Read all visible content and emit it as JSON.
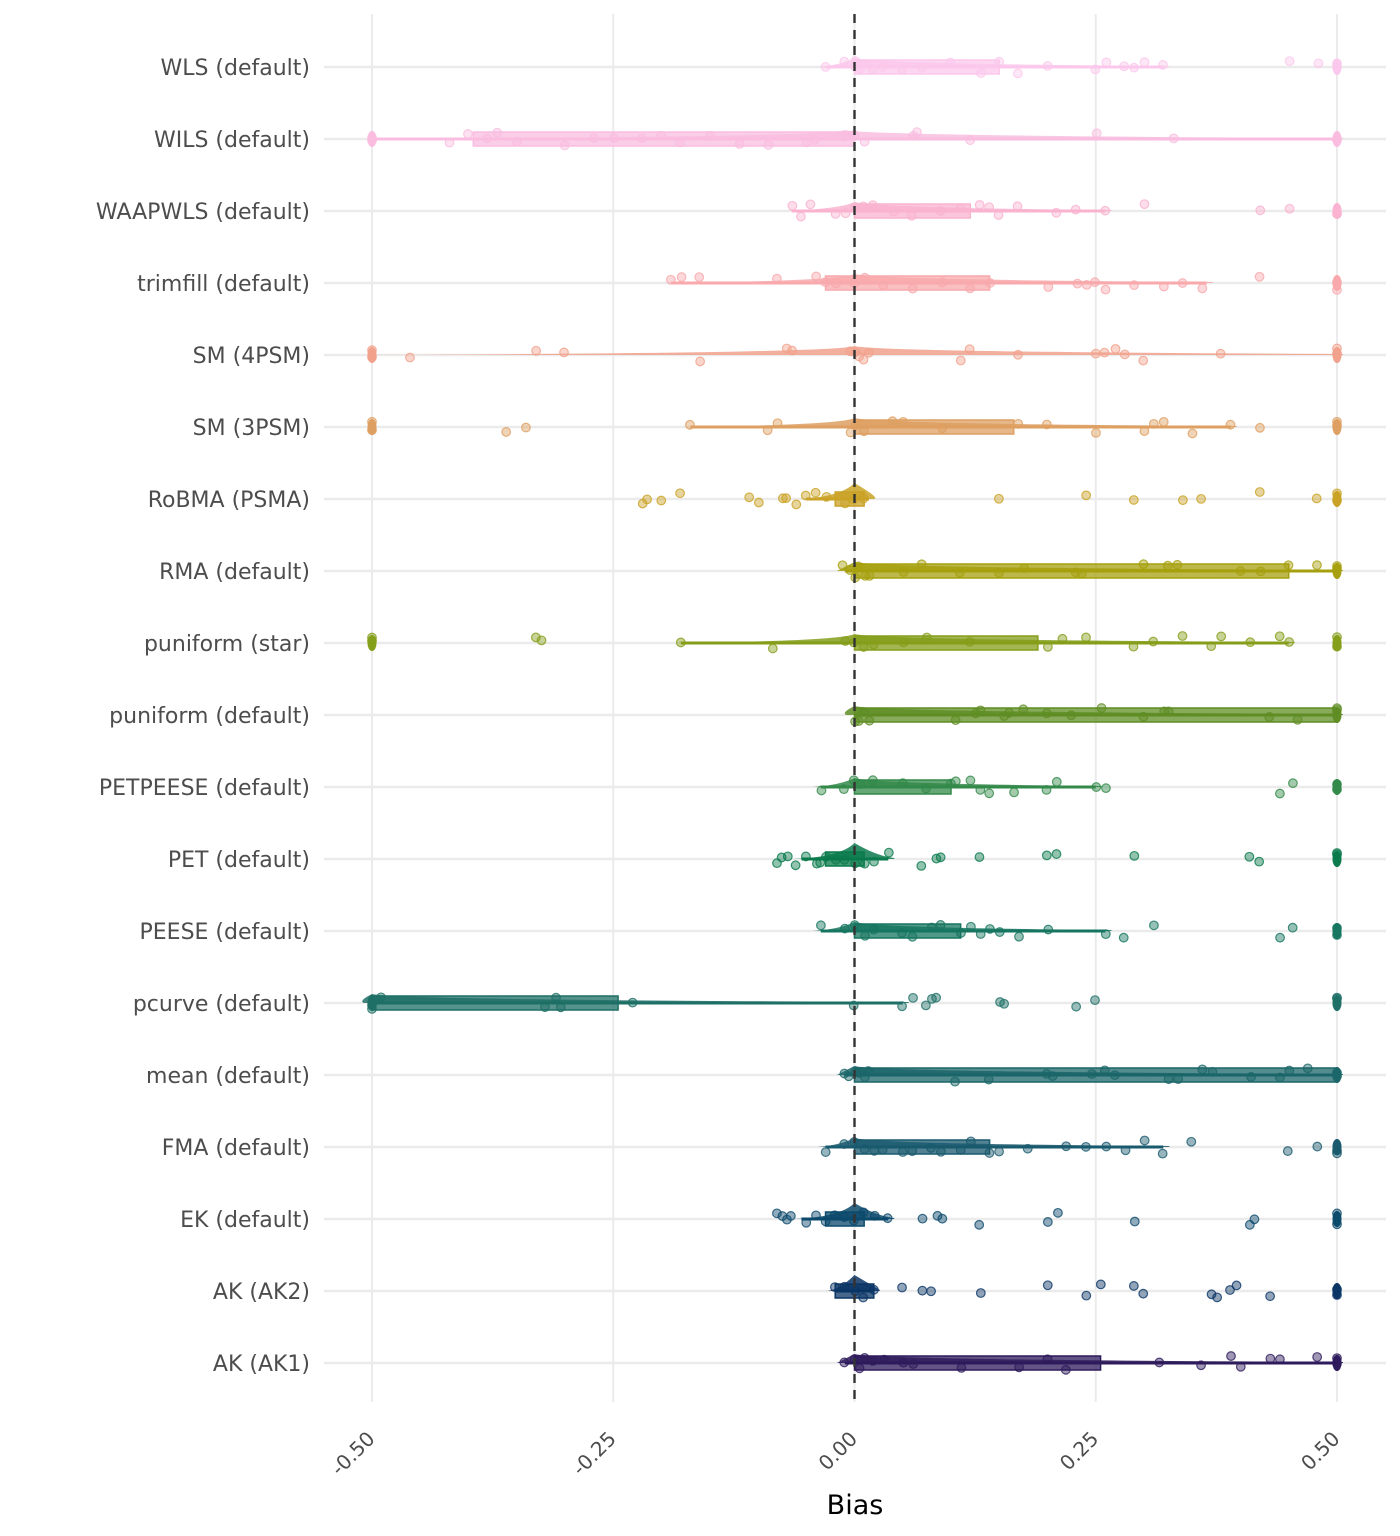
{
  "chart_data": {
    "type": "raincloud",
    "title": "",
    "xlabel": "Bias",
    "ylabel": "",
    "xlim": [
      -0.5,
      0.5
    ],
    "xticks": [
      -0.5,
      -0.25,
      0,
      0.25,
      0.5
    ],
    "xtick_labels": [
      "-0.50",
      "-0.25",
      "0.00",
      "0.25",
      "0.50"
    ],
    "reference_line": {
      "x": 0,
      "style": "dashed",
      "color": "#333333"
    },
    "grid": true,
    "legend": "none",
    "series": [
      {
        "name": "WLS (default)",
        "color": "#FBC8EC",
        "whisker": [
          -0.03,
          0.32
        ],
        "box": [
          0.0,
          0.15
        ],
        "median": 0.0,
        "points": [
          -0.03,
          -0.01,
          0.0,
          0.0,
          0.005,
          0.01,
          0.02,
          0.03,
          0.05,
          0.07,
          0.1,
          0.13,
          0.15,
          0.17,
          0.2,
          0.25,
          0.26,
          0.28,
          0.29,
          0.3,
          0.32,
          0.45,
          0.48,
          0.5,
          0.5
        ]
      },
      {
        "name": "WILS (default)",
        "color": "#F9BDE0",
        "whisker": [
          -0.5,
          0.5
        ],
        "box": [
          -0.395,
          0.0
        ],
        "median": -0.01,
        "points": [
          -0.5,
          -0.5,
          -0.42,
          -0.4,
          -0.38,
          -0.37,
          -0.35,
          -0.3,
          -0.27,
          -0.25,
          -0.22,
          -0.2,
          -0.18,
          -0.15,
          -0.12,
          -0.09,
          -0.05,
          -0.04,
          -0.01,
          0.0,
          0.01,
          0.06,
          0.065,
          0.12,
          0.25,
          0.33,
          0.5,
          0.5
        ]
      },
      {
        "name": "WAAPWLS (default)",
        "color": "#F9B3CF",
        "whisker": [
          -0.065,
          0.26
        ],
        "box": [
          0.0,
          0.12
        ],
        "median": 0.0,
        "points": [
          -0.065,
          -0.055,
          -0.045,
          -0.02,
          -0.01,
          0.0,
          0.01,
          0.02,
          0.04,
          0.06,
          0.09,
          0.11,
          0.13,
          0.14,
          0.15,
          0.17,
          0.21,
          0.23,
          0.26,
          0.3,
          0.42,
          0.45,
          0.5,
          0.5
        ]
      },
      {
        "name": "trimfill (default)",
        "color": "#F8A9AC",
        "whisker": [
          -0.19,
          0.365
        ],
        "box": [
          -0.03,
          0.14
        ],
        "median": 0.0,
        "points": [
          -0.19,
          -0.18,
          -0.16,
          -0.08,
          -0.04,
          -0.03,
          -0.02,
          0.0,
          0.01,
          0.03,
          0.06,
          0.09,
          0.12,
          0.14,
          0.2,
          0.23,
          0.24,
          0.25,
          0.26,
          0.29,
          0.32,
          0.34,
          0.36,
          0.42,
          0.5,
          0.5
        ]
      },
      {
        "name": "SM (4PSM)",
        "color": "#F1A18C",
        "whisker": null,
        "box": null,
        "median": 0.0,
        "points": [
          -0.5,
          -0.5,
          -0.46,
          -0.33,
          -0.3,
          -0.16,
          -0.07,
          -0.065,
          -0.005,
          0.0,
          0.005,
          0.01,
          0.015,
          0.11,
          0.12,
          0.17,
          0.25,
          0.26,
          0.27,
          0.28,
          0.3,
          0.38,
          0.5,
          0.5
        ]
      },
      {
        "name": "SM (3PSM)",
        "color": "#DE9F62",
        "whisker": [
          -0.17,
          0.39
        ],
        "box": [
          0.0,
          0.165
        ],
        "median": 0.0,
        "points": [
          -0.5,
          -0.5,
          -0.36,
          -0.34,
          -0.17,
          -0.09,
          -0.08,
          -0.005,
          0.0,
          0.01,
          0.04,
          0.05,
          0.09,
          0.17,
          0.2,
          0.25,
          0.3,
          0.31,
          0.32,
          0.35,
          0.39,
          0.42,
          0.5,
          0.5
        ]
      },
      {
        "name": "RoBMA (PSMA)",
        "color": "#C9A226",
        "whisker": [
          -0.05,
          0.015
        ],
        "box": [
          -0.02,
          0.01
        ],
        "median": 0.0,
        "points": [
          -0.22,
          -0.215,
          -0.2,
          -0.18,
          -0.11,
          -0.1,
          -0.075,
          -0.07,
          -0.06,
          -0.05,
          -0.04,
          -0.03,
          -0.01,
          0.0,
          0.01,
          0.15,
          0.24,
          0.29,
          0.34,
          0.36,
          0.42,
          0.48,
          0.5,
          0.5
        ]
      },
      {
        "name": "RMA (default)",
        "color": "#A6A00F",
        "whisker": [
          -0.01,
          0.5
        ],
        "box": [
          0.0,
          0.45
        ],
        "median": 0.0,
        "points": [
          -0.012,
          -0.005,
          0.0,
          0.005,
          0.01,
          0.015,
          0.05,
          0.07,
          0.11,
          0.15,
          0.175,
          0.23,
          0.235,
          0.3,
          0.325,
          0.335,
          0.4,
          0.42,
          0.45,
          0.48,
          0.5,
          0.5
        ]
      },
      {
        "name": "puniform (star)",
        "color": "#849E1A",
        "whisker": [
          -0.18,
          0.45
        ],
        "box": [
          0.0,
          0.19
        ],
        "median": 0.0,
        "points": [
          -0.5,
          -0.5,
          -0.33,
          -0.325,
          -0.18,
          -0.085,
          -0.01,
          0.0,
          0.01,
          0.02,
          0.05,
          0.075,
          0.12,
          0.2,
          0.215,
          0.24,
          0.29,
          0.31,
          0.34,
          0.37,
          0.38,
          0.41,
          0.44,
          0.45,
          0.5,
          0.5
        ]
      },
      {
        "name": "puniform (default)",
        "color": "#5F8D24",
        "whisker": [
          0.0,
          0.5
        ],
        "box": [
          0.0,
          0.5
        ],
        "median": 0.0,
        "points": [
          0.0,
          0.005,
          0.01,
          0.015,
          0.105,
          0.125,
          0.13,
          0.155,
          0.16,
          0.175,
          0.2,
          0.225,
          0.255,
          0.3,
          0.32,
          0.325,
          0.43,
          0.46,
          0.5,
          0.5
        ]
      },
      {
        "name": "PETPEESE (default)",
        "color": "#33894A",
        "whisker": [
          -0.035,
          0.25
        ],
        "box": [
          0.0,
          0.1
        ],
        "median": 0.0,
        "points": [
          -0.035,
          -0.01,
          0.0,
          0.005,
          0.02,
          0.05,
          0.075,
          0.1,
          0.105,
          0.12,
          0.13,
          0.14,
          0.165,
          0.2,
          0.21,
          0.25,
          0.26,
          0.44,
          0.455,
          0.5,
          0.5
        ]
      },
      {
        "name": "PET (default)",
        "color": "#0A7A4C",
        "whisker": [
          -0.055,
          0.035
        ],
        "box": [
          -0.03,
          0.01
        ],
        "median": 0.0,
        "points": [
          -0.08,
          -0.075,
          -0.07,
          -0.06,
          -0.05,
          -0.04,
          -0.035,
          -0.03,
          -0.02,
          -0.01,
          0.0,
          0.01,
          0.02,
          0.035,
          0.07,
          0.085,
          0.09,
          0.13,
          0.2,
          0.21,
          0.29,
          0.41,
          0.42,
          0.5,
          0.5
        ]
      },
      {
        "name": "PEESE (default)",
        "color": "#167560",
        "whisker": [
          -0.035,
          0.26
        ],
        "box": [
          0.0,
          0.11
        ],
        "median": 0.0,
        "points": [
          -0.035,
          -0.01,
          0.0,
          0.01,
          0.02,
          0.05,
          0.06,
          0.08,
          0.09,
          0.11,
          0.12,
          0.13,
          0.14,
          0.15,
          0.17,
          0.2,
          0.26,
          0.28,
          0.31,
          0.44,
          0.455,
          0.5,
          0.5
        ]
      },
      {
        "name": "pcurve (default)",
        "color": "#1E6F66",
        "whisker": [
          -0.5,
          0.05
        ],
        "box": [
          -0.5,
          -0.245
        ],
        "median": -0.5,
        "points": [
          -0.5,
          -0.5,
          -0.49,
          -0.32,
          -0.31,
          -0.305,
          -0.23,
          0.0,
          0.05,
          0.06,
          0.075,
          0.08,
          0.085,
          0.15,
          0.155,
          0.23,
          0.25,
          0.5,
          0.5
        ]
      },
      {
        "name": "mean (default)",
        "color": "#1B6669",
        "whisker": [
          -0.01,
          0.5
        ],
        "box": [
          0.0,
          0.5
        ],
        "median": 0.0,
        "points": [
          -0.01,
          -0.005,
          0.0,
          0.005,
          0.01,
          0.015,
          0.105,
          0.14,
          0.2,
          0.205,
          0.245,
          0.26,
          0.27,
          0.325,
          0.335,
          0.36,
          0.37,
          0.41,
          0.44,
          0.45,
          0.47,
          0.5,
          0.5
        ]
      },
      {
        "name": "FMA (default)",
        "color": "#1A5A6E",
        "whisker": [
          -0.03,
          0.32
        ],
        "box": [
          0.0,
          0.14
        ],
        "median": 0.0,
        "points": [
          -0.03,
          -0.01,
          0.0,
          0.01,
          0.02,
          0.03,
          0.05,
          0.06,
          0.08,
          0.09,
          0.11,
          0.12,
          0.14,
          0.15,
          0.18,
          0.22,
          0.24,
          0.26,
          0.28,
          0.3,
          0.32,
          0.35,
          0.45,
          0.48,
          0.5,
          0.5
        ]
      },
      {
        "name": "EK (default)",
        "color": "#0C4A6C",
        "whisker": [
          -0.055,
          0.035
        ],
        "box": [
          -0.03,
          0.01
        ],
        "median": 0.0,
        "points": [
          -0.08,
          -0.075,
          -0.07,
          -0.065,
          -0.05,
          -0.04,
          -0.03,
          -0.02,
          -0.01,
          0.0,
          0.01,
          0.02,
          0.035,
          0.07,
          0.085,
          0.09,
          0.13,
          0.2,
          0.21,
          0.29,
          0.41,
          0.415,
          0.5,
          0.5
        ]
      },
      {
        "name": "AK (AK2)",
        "color": "#0A3565",
        "whisker": [
          -0.02,
          0.02
        ],
        "box": [
          -0.02,
          0.02
        ],
        "median": 0.0,
        "points": [
          -0.02,
          -0.01,
          0.0,
          0.01,
          0.02,
          0.05,
          0.07,
          0.08,
          0.13,
          0.2,
          0.24,
          0.255,
          0.29,
          0.3,
          0.37,
          0.375,
          0.39,
          0.395,
          0.43,
          0.5,
          0.5
        ]
      },
      {
        "name": "AK (AK1)",
        "color": "#2E1B5C",
        "whisker": [
          -0.01,
          0.5
        ],
        "box": [
          0.0,
          0.255
        ],
        "median": 0.0,
        "points": [
          -0.01,
          0.0,
          0.005,
          0.01,
          0.02,
          0.03,
          0.05,
          0.06,
          0.11,
          0.17,
          0.2,
          0.22,
          0.315,
          0.36,
          0.39,
          0.4,
          0.43,
          0.44,
          0.48,
          0.5,
          0.5
        ]
      }
    ]
  }
}
